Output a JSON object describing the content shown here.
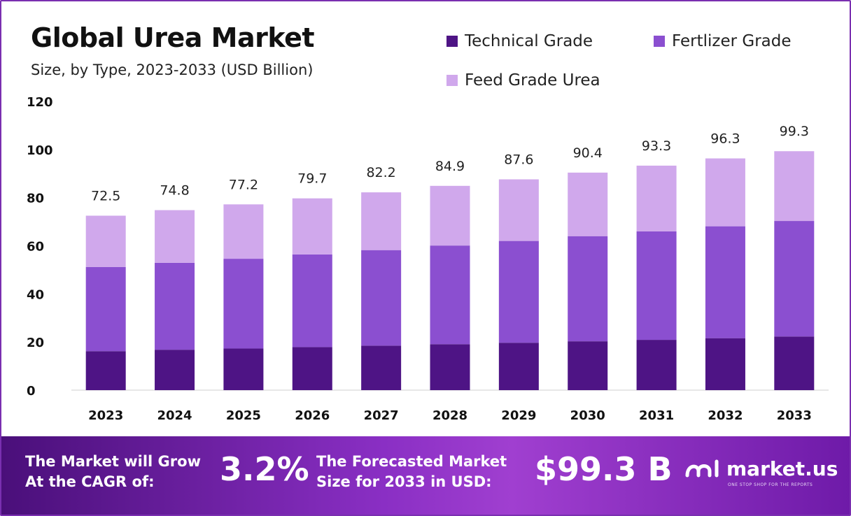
{
  "chart_data": {
    "type": "bar",
    "stacked": true,
    "title": "Global Urea Market",
    "subtitle": "Size, by Type, 2023-2033 (USD Billion)",
    "categories": [
      "2023",
      "2024",
      "2025",
      "2026",
      "2027",
      "2028",
      "2029",
      "2030",
      "2031",
      "2032",
      "2033"
    ],
    "series": [
      {
        "name": "Technical Grade",
        "color": "#4e1485",
        "values": [
          16.2,
          16.8,
          17.3,
          17.9,
          18.5,
          19.1,
          19.7,
          20.3,
          20.9,
          21.6,
          22.3
        ]
      },
      {
        "name": "Fertlizer Grade",
        "color": "#8b4fd0",
        "values": [
          35.0,
          36.1,
          37.3,
          38.5,
          39.7,
          41.0,
          42.3,
          43.7,
          45.1,
          46.5,
          48.0
        ]
      },
      {
        "name": "Feed Grade Urea",
        "color": "#d0a8ec",
        "values": [
          21.3,
          21.9,
          22.6,
          23.3,
          24.0,
          24.8,
          25.6,
          26.4,
          27.3,
          28.2,
          29.0
        ]
      }
    ],
    "totals": [
      "72.5",
      "74.8",
      "77.2",
      "79.7",
      "82.2",
      "84.9",
      "87.6",
      "90.4",
      "93.3",
      "96.3",
      "99.3"
    ],
    "ylim": [
      0,
      120
    ],
    "yticks": [
      0,
      20,
      40,
      60,
      80,
      100,
      120
    ],
    "xlabel": "",
    "ylabel": "",
    "legend_position": "top-right"
  },
  "footer": {
    "cagr_line1": "The Market will Grow",
    "cagr_line2": "At the CAGR of:",
    "cagr_value": "3.2%",
    "forecast_line1": "The Forecasted Market",
    "forecast_line2": "Size for 2033 in USD:",
    "forecast_value": "$99.3 B",
    "logo_text": "market.us",
    "logo_tagline": "ONE STOP SHOP FOR THE REPORTS"
  }
}
